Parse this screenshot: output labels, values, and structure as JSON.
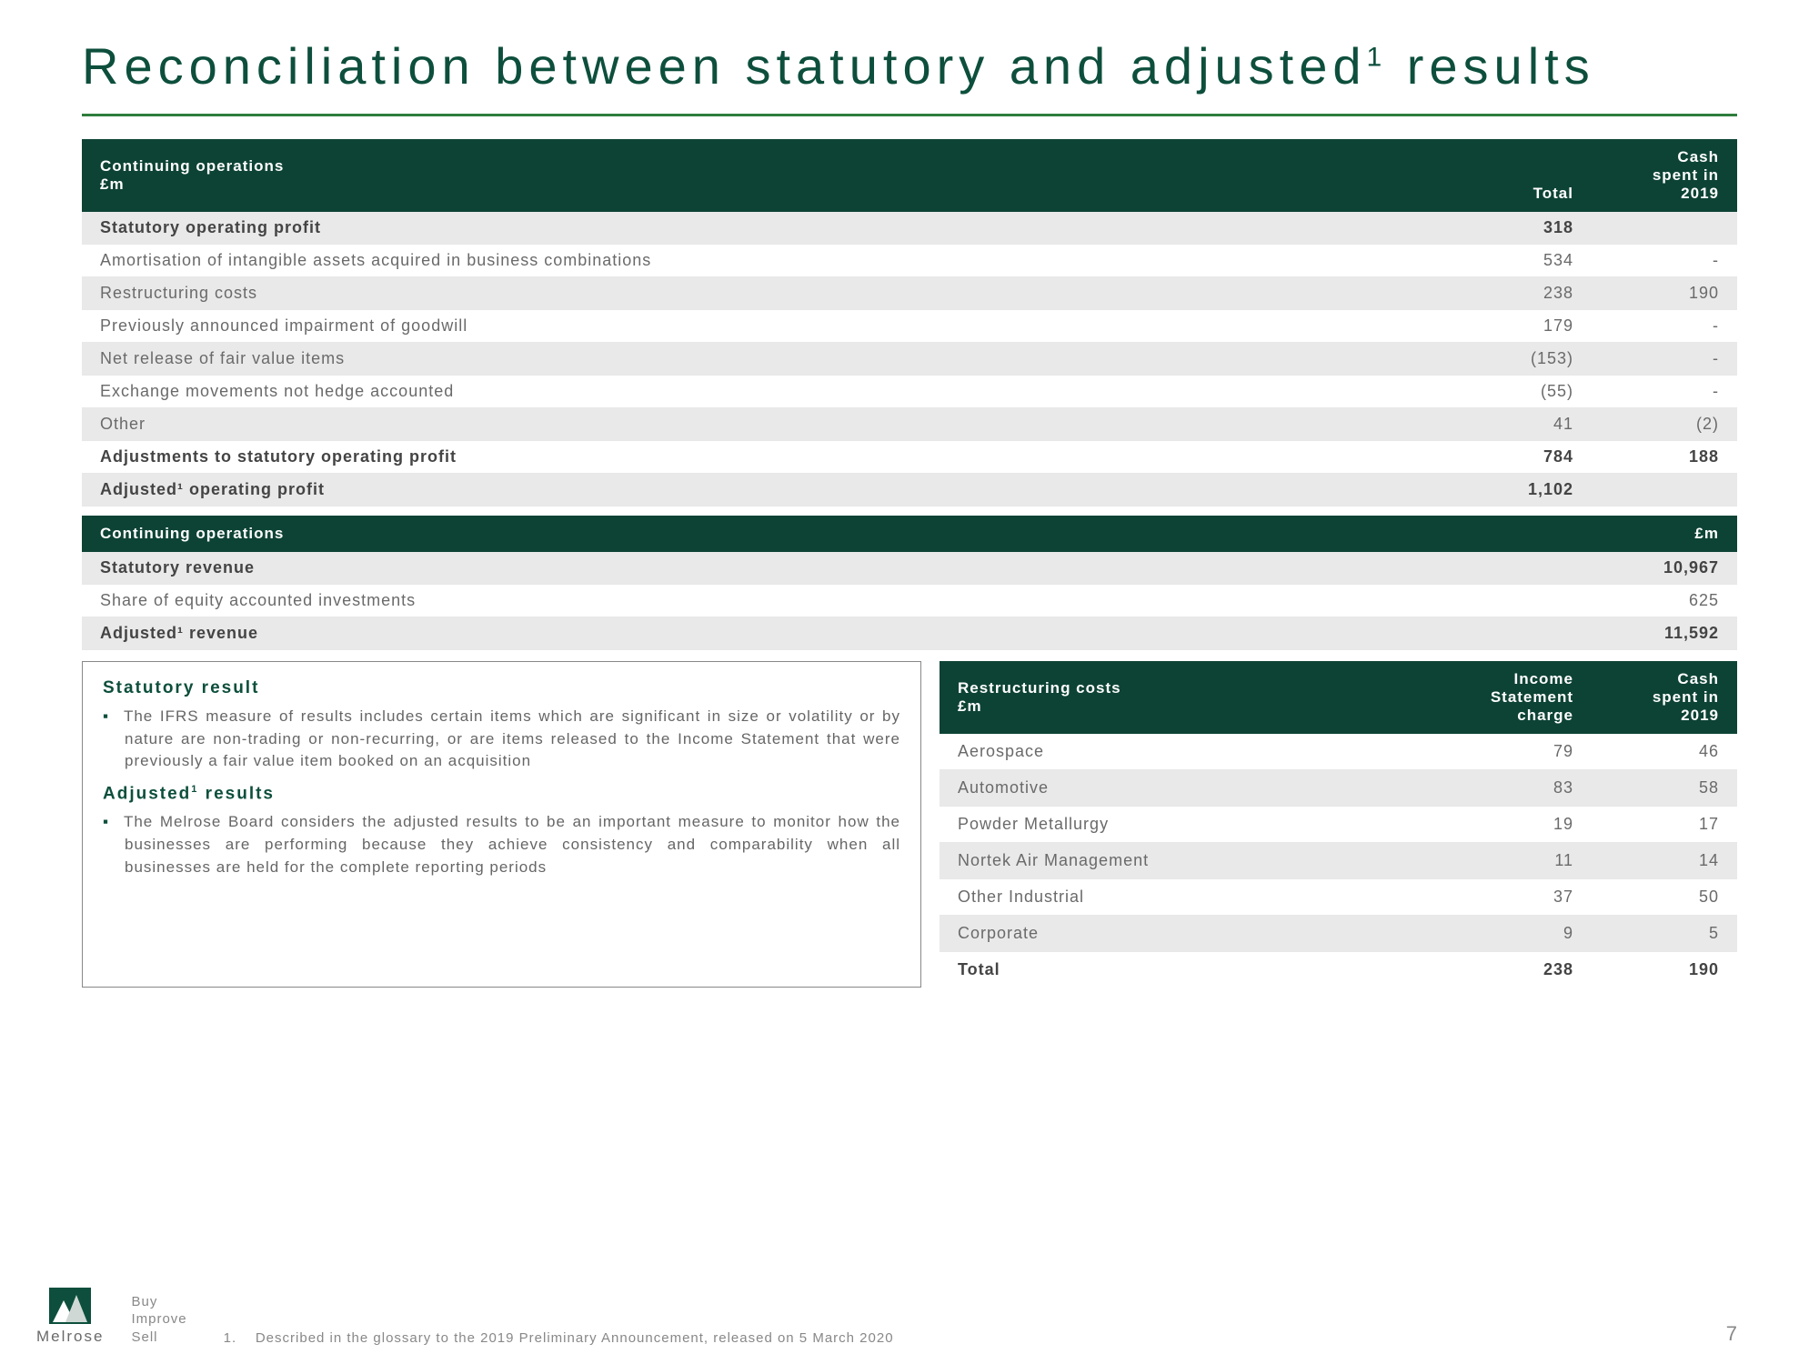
{
  "colors": {
    "brand_green_dark": "#0d4f3c",
    "header_bg": "#0d4335",
    "rule_green": "#2d7d3c",
    "row_shade": "#e9e9e9",
    "text_muted": "#6a6a6a"
  },
  "slide": {
    "title_pre": "Reconciliation between statutory and adjusted",
    "title_sup": "1",
    "title_post": " results",
    "page_number": "7"
  },
  "table1": {
    "header": {
      "label": "Continuing operations",
      "unit": "£m",
      "col1": "Total",
      "col2_l1": "Cash",
      "col2_l2": "spent in",
      "col2_l3": "2019"
    },
    "rows": [
      {
        "label": "Statutory operating profit",
        "total": "318",
        "cash": "",
        "bold": true,
        "sh": true
      },
      {
        "label": "Amortisation of intangible assets acquired in business combinations",
        "total": "534",
        "cash": "-",
        "bold": false,
        "sh": false
      },
      {
        "label": "Restructuring costs",
        "total": "238",
        "cash": "190",
        "bold": false,
        "sh": true
      },
      {
        "label": "Previously announced impairment of goodwill",
        "total": "179",
        "cash": "-",
        "bold": false,
        "sh": false
      },
      {
        "label": "Net release of fair value items",
        "total": "(153)",
        "cash": "-",
        "bold": false,
        "sh": true
      },
      {
        "label": "Exchange movements not hedge accounted",
        "total": "(55)",
        "cash": "-",
        "bold": false,
        "sh": false
      },
      {
        "label": "Other",
        "total": "41",
        "cash": "(2)",
        "bold": false,
        "sh": true
      },
      {
        "label": "Adjustments to statutory operating profit",
        "total": "784",
        "cash": "188",
        "bold": true,
        "sh": false
      },
      {
        "label": "Adjusted¹ operating profit",
        "total": "1,102",
        "cash": "",
        "bold": true,
        "sh": true
      }
    ]
  },
  "table2": {
    "header": {
      "label": "Continuing operations",
      "col": "£m"
    },
    "rows": [
      {
        "label": "Statutory revenue",
        "val": "10,967",
        "bold": true,
        "sh": true
      },
      {
        "label": "Share of equity accounted investments",
        "val": "625",
        "bold": false,
        "sh": false
      },
      {
        "label": "Adjusted¹ revenue",
        "val": "11,592",
        "bold": true,
        "sh": true
      }
    ]
  },
  "textbox": {
    "h1": "Statutory result",
    "p1": "The IFRS measure of results includes certain items which are significant in size or volatility or by nature are non-trading or non-recurring, or are items released to the Income Statement that were previously a fair value item booked on an acquisition",
    "h2_pre": "Adjusted",
    "h2_sup": "1",
    "h2_post": " results",
    "p2": "The Melrose Board considers the adjusted results to be an important measure to monitor how the businesses are performing because they achieve consistency and comparability when all businesses are held for the complete reporting periods"
  },
  "table3": {
    "header": {
      "label": "Restructuring costs",
      "unit": "£m",
      "col1_l1": "Income",
      "col1_l2": "Statement",
      "col1_l3": "charge",
      "col2_l1": "Cash",
      "col2_l2": "spent in",
      "col2_l3": "2019"
    },
    "rows": [
      {
        "label": "Aerospace",
        "c1": "79",
        "c2": "46",
        "sh": false
      },
      {
        "label": "Automotive",
        "c1": "83",
        "c2": "58",
        "sh": true
      },
      {
        "label": "Powder Metallurgy",
        "c1": "19",
        "c2": "17",
        "sh": false
      },
      {
        "label": "Nortek Air Management",
        "c1": "11",
        "c2": "14",
        "sh": true
      },
      {
        "label": "Other Industrial",
        "c1": "37",
        "c2": "50",
        "sh": false
      },
      {
        "label": "Corporate",
        "c1": "9",
        "c2": "5",
        "sh": true
      }
    ],
    "total": {
      "label": "Total",
      "c1": "238",
      "c2": "190"
    }
  },
  "footer": {
    "logo_name": "Melrose",
    "bis_l1": "Buy",
    "bis_l2": "Improve",
    "bis_l3": "Sell",
    "footnote_num": "1.",
    "footnote": "Described in the glossary to the 2019 Preliminary Announcement, released on 5 March 2020"
  }
}
